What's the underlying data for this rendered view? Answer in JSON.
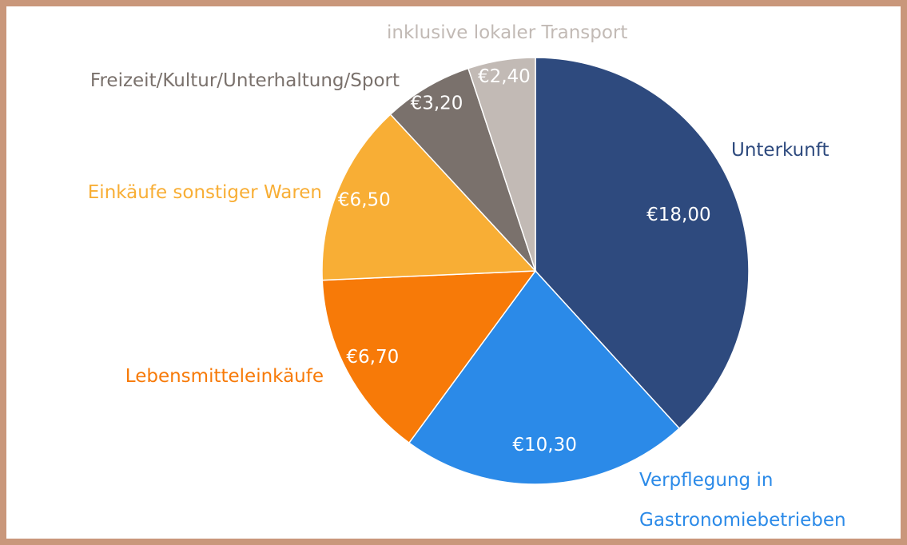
{
  "chart_data": {
    "type": "pie",
    "categories": [
      "Unterkunft",
      "Verpflegung in Gastronomiebetrieben",
      "Lebensmitteleinkäufe",
      "Einkäufe sonstiger Waren",
      "Freizeit/Kultur/Unterhaltung/Sport",
      "inklusive lokaler Transport"
    ],
    "values": [
      18.0,
      10.3,
      6.7,
      6.5,
      3.2,
      2.4
    ],
    "value_labels": [
      "€18,00",
      "€10,30",
      "€6,70",
      "€6,50",
      "€3,20",
      "€2,40"
    ],
    "colors": [
      "#2e4a7e",
      "#2b8ae8",
      "#f77a08",
      "#f8ae35",
      "#7a716c",
      "#c2bab5"
    ]
  }
}
